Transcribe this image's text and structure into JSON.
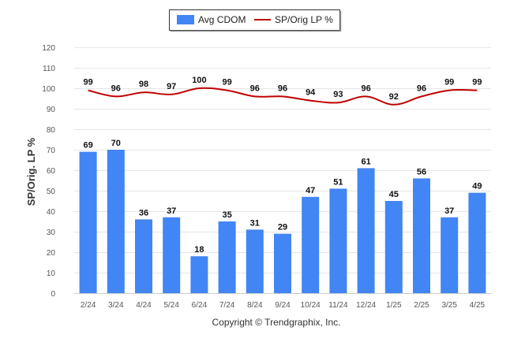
{
  "chart_data": {
    "type": "bar",
    "categories": [
      "2/24",
      "3/24",
      "4/24",
      "5/24",
      "6/24",
      "7/24",
      "8/24",
      "9/24",
      "10/24",
      "11/24",
      "12/24",
      "1/25",
      "2/25",
      "3/25",
      "4/25"
    ],
    "series": [
      {
        "name": "Avg CDOM",
        "type": "bar",
        "color": "#4285f4",
        "values": [
          69,
          70,
          36,
          37,
          18,
          35,
          31,
          29,
          47,
          51,
          61,
          45,
          56,
          37,
          49
        ]
      },
      {
        "name": "SP/Orig LP %",
        "type": "line",
        "color": "#c00000",
        "values": [
          99,
          96,
          98,
          97,
          100,
          99,
          96,
          96,
          94,
          93,
          96,
          92,
          96,
          99,
          99
        ]
      }
    ],
    "ylabel": "SP/Orig. LP %",
    "ylim": [
      0,
      120
    ],
    "yticks": [
      0,
      10,
      20,
      30,
      40,
      50,
      60,
      70,
      80,
      90,
      100,
      110,
      120
    ],
    "legend_position": "top-center",
    "grid": true
  },
  "footer": {
    "copyright": "Copyright © Trendgraphix, Inc."
  }
}
